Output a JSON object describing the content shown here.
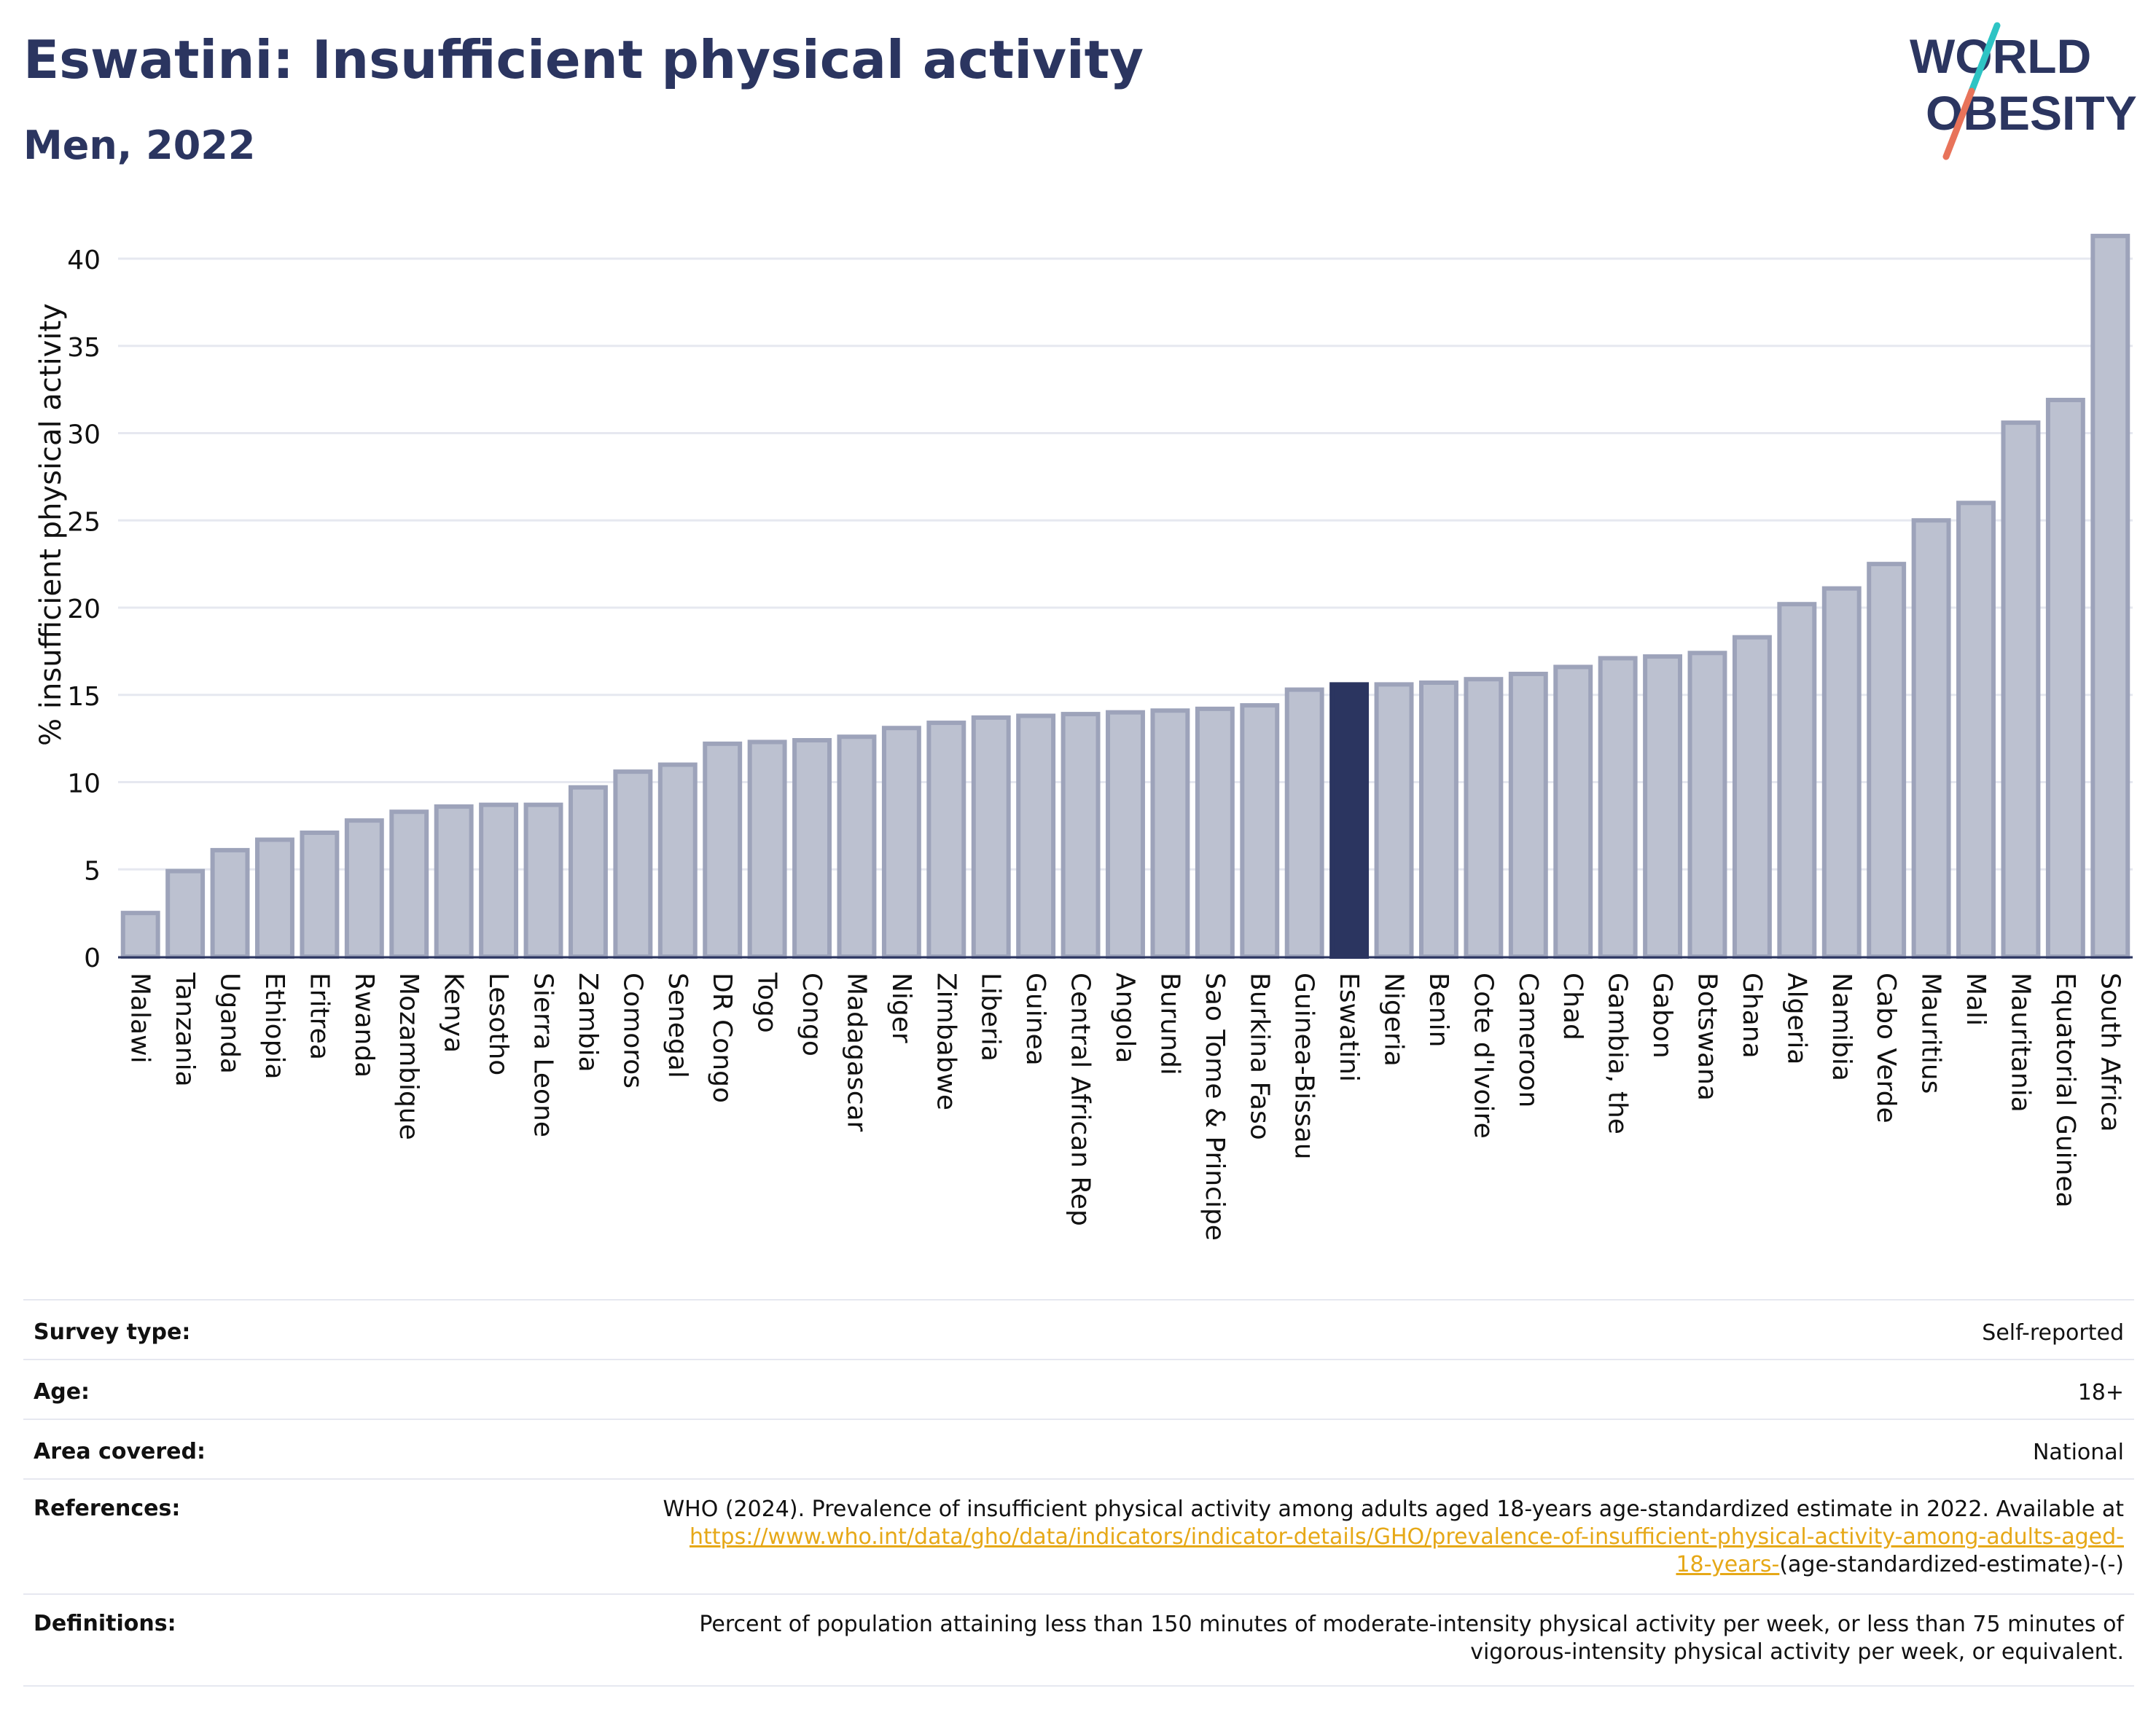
{
  "header": {
    "title": "Eswatini: Insufficient physical activity",
    "subtitle": "Men, 2022",
    "logo_line1": "WORLD",
    "logo_line2": "OBESITY"
  },
  "colors": {
    "title": "#2b3560",
    "bar": "#bcc1d0",
    "bar_border": "#9da3ba",
    "highlight": "#2b3560",
    "grid": "#e6e8f0",
    "link": "#e6a817",
    "logo_teal": "#2ec4c4",
    "logo_coral": "#e8735a"
  },
  "chart_data": {
    "type": "bar",
    "ylabel": "% insufficient physical activity",
    "xlabel": "",
    "ylim": [
      0,
      42
    ],
    "yticks": [
      0,
      5,
      10,
      15,
      20,
      25,
      30,
      35,
      40
    ],
    "grid": true,
    "highlight": "Eswatini",
    "categories": [
      "Malawi",
      "Tanzania",
      "Uganda",
      "Ethiopia",
      "Eritrea",
      "Rwanda",
      "Mozambique",
      "Kenya",
      "Lesotho",
      "Sierra Leone",
      "Zambia",
      "Comoros",
      "Senegal",
      "DR Congo",
      "Togo",
      "Congo",
      "Madagascar",
      "Niger",
      "Zimbabwe",
      "Liberia",
      "Guinea",
      "Central African Rep",
      "Angola",
      "Burundi",
      "Sao Tome & Principe",
      "Burkina Faso",
      "Guinea-Bissau",
      "Eswatini",
      "Nigeria",
      "Benin",
      "Cote d'Ivoire",
      "Cameroon",
      "Chad",
      "Gambia, the",
      "Gabon",
      "Botswana",
      "Ghana",
      "Algeria",
      "Namibia",
      "Cabo Verde",
      "Mauritius",
      "Mali",
      "Mauritania",
      "Equatorial Guinea",
      "South Africa"
    ],
    "values": [
      2.5,
      4.9,
      6.1,
      6.7,
      7.1,
      7.8,
      8.3,
      8.6,
      8.7,
      8.7,
      9.7,
      10.6,
      11.0,
      12.2,
      12.3,
      12.4,
      12.6,
      13.1,
      13.4,
      13.7,
      13.8,
      13.9,
      14.0,
      14.1,
      14.2,
      14.4,
      15.3,
      15.6,
      15.6,
      15.7,
      15.9,
      16.2,
      16.6,
      17.1,
      17.2,
      17.4,
      18.3,
      20.2,
      21.1,
      22.5,
      25.0,
      26.0,
      30.6,
      31.9,
      41.3
    ]
  },
  "info": {
    "survey_type_label": "Survey type:",
    "survey_type_value": "Self-reported",
    "age_label": "Age:",
    "age_value": "18+",
    "area_label": "Area covered:",
    "area_value": "National",
    "references_label": "References:",
    "references_text1": "WHO (2024). Prevalence of insufficient physical activity among adults aged 18-years age-standardized estimate in 2022. Available at",
    "references_link1": "https://www.who.int/data/gho/data/indicators/indicator-details/GHO/prevalence-of-insufficient-physical-activity-among-adults-aged-",
    "references_link2": "18-years-",
    "references_text2": "(age-standardized-estimate)-(-)",
    "definitions_label": "Definitions:",
    "definitions_line1": "Percent of population attaining less than 150 minutes of moderate-intensity physical activity per week, or less than 75 minutes of",
    "definitions_line2": "vigorous-intensity physical activity per week, or equivalent."
  }
}
